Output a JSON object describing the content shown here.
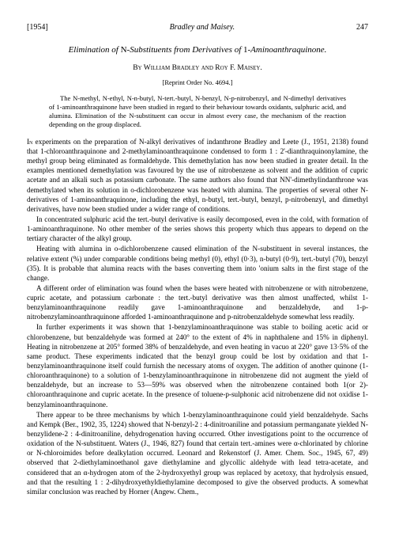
{
  "header": {
    "year": "[1954]",
    "authors": "Bradley and Maisey.",
    "page": "247"
  },
  "title_parts": {
    "p1": "Elimination of ",
    "p2": "N",
    "p3": "-Substituents from Derivatives of ",
    "p4": "1",
    "p5": "-Aminoanthraquinone."
  },
  "authors_line": {
    "by": "By ",
    "a1": "William Bradley",
    "and": " and ",
    "a2": "Roy F. Maisey."
  },
  "reprint": "[Reprint Order No. 4694.]",
  "abstract": "The N-methyl, N-ethyl, N-n-butyl, N-tert.-butyl, N-benzyl, N-p-nitrobenzyl, and N-dimethyl derivatives of 1-aminoanthraquinone have been studied in regard to their behaviour towards oxidants, sulphuric acid, and alumina. Elimination of the N-substituent can occur in almost every case, the mechanism of the reaction depending on the group displaced.",
  "paragraphs": {
    "p1a": "In",
    "p1": " experiments on the preparation of N-alkyl derivatives of indanthrone Bradley and Leete (J., 1951, 2138) found that 1-chloroanthraquinone and 2-methylaminoanthraquinone condensed to form 1 : 2'-dianthraquinonylamine, the methyl group being eliminated as formaldehyde. This demethylation has now been studied in greater detail. In the examples mentioned demethylation was favoured by the use of nitrobenzene as solvent and the addition of cupric acetate and an alkali such as potassium carbonate. The same authors also found that NN'-dimethylindanthrone was demethylated when its solution in o-dichlorobenzene was heated with alumina. The properties of several other N-derivatives of 1-aminoanthraquinone, including the ethyl, n-butyl, tert.-butyl, benzyl, p-nitrobenzyl, and dimethyl derivatives, have now been studied under a wider range of conditions.",
    "p2": "In concentrated sulphuric acid the tert.-butyl derivative is easily decomposed, even in the cold, with formation of 1-aminoanthraquinone. No other member of the series shows this property which thus appears to depend on the tertiary character of the alkyl group.",
    "p3": "Heating with alumina in o-dichlorobenzene caused elimination of the N-substituent in several instances, the relative extent (%) under comparable conditions being methyl (0), ethyl (0·3), n-butyl (0·9), tert.-butyl (70), benzyl (35). It is probable that alumina reacts with the bases converting them into 'onium salts in the first stage of the change.",
    "p4": "A different order of elimination was found when the bases were heated with nitrobenzene or with nitrobenzene, cupric acetate, and potassium carbonate : the tert.-butyl derivative was then almost unaffected, whilst 1-benzylaminoanthraquinone readily gave 1-aminoanthraquinone and benzaldehyde, and 1-p-nitrobenzylaminoanthraquinone afforded 1-aminoanthraquinone and p-nitrobenzaldehyde somewhat less readily.",
    "p5": "In further experiments it was shown that 1-benzylaminoanthraquinone was stable to boiling acetic acid or chlorobenzene, but benzaldehyde was formed at 240° to the extent of 4% in naphthalene and 15% in diphenyl. Heating in nitrobenzene at 205° formed 38% of benzaldehyde, and even heating in vacuo at 220° gave 13·5% of the same product. These experiments indicated that the benzyl group could be lost by oxidation and that 1-benzylaminoanthraquinone itself could furnish the necessary atoms of oxygen. The addition of another quinone (1-chloroanthraquinone) to a solution of 1-benzylaminoanthraquinone in nitrobenzene did not augment the yield of benzaldehyde, but an increase to 53—59% was observed when the nitrobenzene contained both 1(or 2)-chloroanthraquinone and cupric acetate. In the presence of toluene-p-sulphonic acid nitrobenzene did not oxidise 1-benzylaminoanthraquinone.",
    "p6": "There appear to be three mechanisms by which 1-benzylaminoanthraquinone could yield benzaldehyde. Sachs and Kempk (Ber., 1902, 35, 1224) showed that N-benzyl-2 : 4-dinitroaniline and potassium permanganate yielded N-benzylidene-2 : 4-dinitroaniline, dehydrogenation having occurred. Other investigations point to the occurrence of oxidation of the N-substituent. Waters (J., 1946, 827) found that certain tert.-amines were α-chlorinated by chlorine or N-chloroimides before dealkylation occurred. Leonard and Rekenstorf (J. Amer. Chem. Soc., 1945, 67, 49) observed that 2-diethylaminoethanol gave diethylamine and glycollic aldehyde with lead tetra-acetate, and considered that an α-hydrogen atom of the 2-hydroxyethyl group was replaced by acetoxy, that hydrolysis ensued, and that the resulting 1 : 2-dihydroxyethyldiethylamine decomposed to give the observed products. A somewhat similar conclusion was reached by Horner (Angew. Chem.,"
  }
}
